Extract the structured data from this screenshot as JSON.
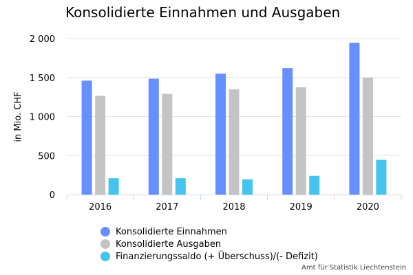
{
  "chart_data": {
    "type": "bar",
    "title": "Konsolidierte Einnahmen und Ausgaben",
    "ylabel": "in Mio. CHF",
    "xlabel": "",
    "ylim": [
      0,
      2000
    ],
    "yticks": [
      0,
      500,
      1000,
      1500,
      2000
    ],
    "ytick_labels": [
      "0",
      "500",
      "1 000",
      "1 500",
      "2 000"
    ],
    "categories": [
      "2016",
      "2017",
      "2018",
      "2019",
      "2020"
    ],
    "series": [
      {
        "name": "Konsolidierte Einnahmen",
        "color": "#6690ff",
        "values": [
          1460,
          1485,
          1550,
          1620,
          1945
        ]
      },
      {
        "name": "Konsolidierte Ausgaben",
        "color": "#c4c4c4",
        "values": [
          1265,
          1290,
          1350,
          1375,
          1500
        ]
      },
      {
        "name": "Finanzierungssaldo (+ Überschuss)/(- Defizit)",
        "color": "#44c4ee",
        "values": [
          210,
          210,
          195,
          240,
          445
        ]
      }
    ],
    "grid": true,
    "legend_position": "bottom-left",
    "source": "Amt für Statistik Liechtenstein"
  }
}
